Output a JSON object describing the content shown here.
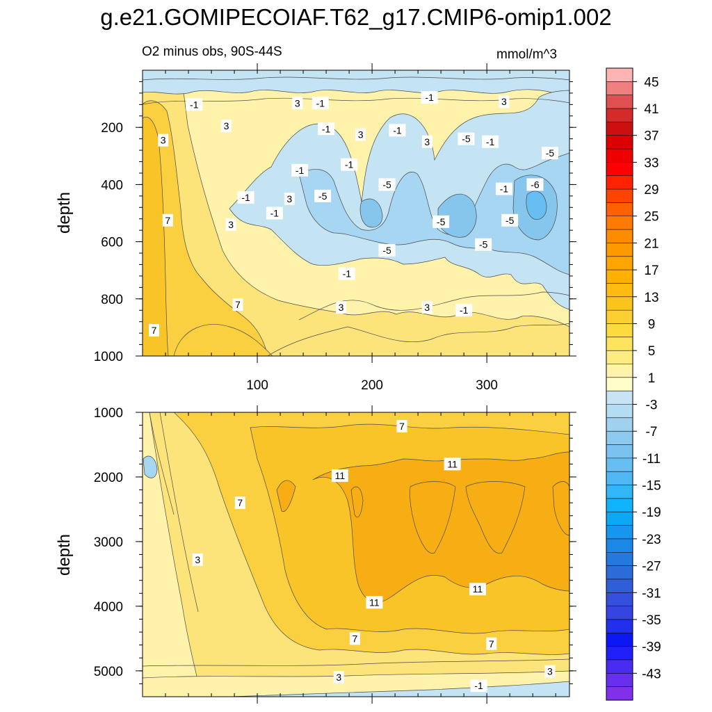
{
  "chart_data": {
    "type": "contour",
    "title": "g.e21.GOMIPECOIAF.T62_g17.CMIP6-omip1.002",
    "subtitle": "O2 minus obs, 90S-44S",
    "units": "mmol/m^3",
    "panels": [
      {
        "name": "upper",
        "ylabel": "depth",
        "ylim": [
          1000,
          0
        ],
        "xlim": [
          0,
          372
        ],
        "xticks": [
          100,
          200,
          300
        ],
        "xtick_labels": [
          "100",
          "200",
          "300"
        ],
        "yticks": [
          200,
          400,
          600,
          800,
          1000
        ],
        "ytick_labels": [
          "200",
          "400",
          "600",
          "800",
          "1000"
        ],
        "contour_labels": [
          {
            "text": "-1",
            "x": 45,
            "y": 120
          },
          {
            "text": "3",
            "x": 135,
            "y": 115
          },
          {
            "text": "-1",
            "x": 155,
            "y": 115
          },
          {
            "text": "-1",
            "x": 250,
            "y": 95
          },
          {
            "text": "3",
            "x": 315,
            "y": 110
          },
          {
            "text": "3",
            "x": 73,
            "y": 195
          },
          {
            "text": "3",
            "x": 18,
            "y": 245
          },
          {
            "text": "-1",
            "x": 160,
            "y": 205
          },
          {
            "text": "3",
            "x": 190,
            "y": 225
          },
          {
            "text": "-1",
            "x": 222,
            "y": 210
          },
          {
            "text": "3",
            "x": 248,
            "y": 250
          },
          {
            "text": "-5",
            "x": 282,
            "y": 240
          },
          {
            "text": "-1",
            "x": 303,
            "y": 250
          },
          {
            "text": "-5",
            "x": 355,
            "y": 290
          },
          {
            "text": "-1",
            "x": 137,
            "y": 350
          },
          {
            "text": "-1",
            "x": 180,
            "y": 330
          },
          {
            "text": "-5",
            "x": 213,
            "y": 400
          },
          {
            "text": "-1",
            "x": 315,
            "y": 415
          },
          {
            "text": "-6",
            "x": 342,
            "y": 400
          },
          {
            "text": "-1",
            "x": 90,
            "y": 445
          },
          {
            "text": "3",
            "x": 128,
            "y": 450
          },
          {
            "text": "-5",
            "x": 157,
            "y": 440
          },
          {
            "text": "-1",
            "x": 115,
            "y": 500
          },
          {
            "text": "7",
            "x": 22,
            "y": 525
          },
          {
            "text": "3",
            "x": 77,
            "y": 540
          },
          {
            "text": "-5",
            "x": 260,
            "y": 530
          },
          {
            "text": "-5",
            "x": 320,
            "y": 525
          },
          {
            "text": "-5",
            "x": 213,
            "y": 630
          },
          {
            "text": "-5",
            "x": 297,
            "y": 610
          },
          {
            "text": "-1",
            "x": 178,
            "y": 712
          },
          {
            "text": "-1",
            "x": 280,
            "y": 840
          },
          {
            "text": "7",
            "x": 83,
            "y": 820
          },
          {
            "text": "3",
            "x": 173,
            "y": 830
          },
          {
            "text": "3",
            "x": 248,
            "y": 830
          },
          {
            "text": "7",
            "x": 10,
            "y": 910
          }
        ]
      },
      {
        "name": "lower",
        "ylabel": "depth",
        "ylim": [
          5400,
          1000
        ],
        "xlim": [
          0,
          372
        ],
        "xticks": [
          100,
          200,
          300
        ],
        "xtick_labels": [
          "",
          "",
          ""
        ],
        "yticks": [
          1000,
          2000,
          3000,
          4000,
          5000
        ],
        "ytick_labels": [
          "1000",
          "2000",
          "3000",
          "4000",
          "5000"
        ],
        "contour_labels": [
          {
            "text": "7",
            "x": 226,
            "y": 1215
          },
          {
            "text": "11",
            "x": 270,
            "y": 1800
          },
          {
            "text": "11",
            "x": 172,
            "y": 1980
          },
          {
            "text": "7",
            "x": 85,
            "y": 2400
          },
          {
            "text": "3",
            "x": 48,
            "y": 3280
          },
          {
            "text": "11",
            "x": 292,
            "y": 3735
          },
          {
            "text": "11",
            "x": 202,
            "y": 3940
          },
          {
            "text": "7",
            "x": 185,
            "y": 4500
          },
          {
            "text": "7",
            "x": 304,
            "y": 4580
          },
          {
            "text": "3",
            "x": 171,
            "y": 5100
          },
          {
            "text": "3",
            "x": 355,
            "y": 5010
          },
          {
            "text": "-1",
            "x": 293,
            "y": 5230
          }
        ]
      }
    ],
    "colorbar": {
      "labels": [
        "45",
        "41",
        "37",
        "33",
        "29",
        "25",
        "21",
        "17",
        "13",
        "9",
        "5",
        "1",
        "-3",
        "-7",
        "-11",
        "-15",
        "-19",
        "-23",
        "-27",
        "-31",
        "-35",
        "-39",
        "-43"
      ],
      "colors": [
        "#ffb4b4",
        "#f08080",
        "#e05050",
        "#d42a2a",
        "#cc1010",
        "#dd0000",
        "#ee0000",
        "#ff0000",
        "#ff2200",
        "#ff4400",
        "#ff6000",
        "#ff7a00",
        "#ff8c00",
        "#ff9900",
        "#ffa500",
        "#ffb000",
        "#ffbc10",
        "#f9c41c",
        "#fbd030",
        "#fdda40",
        "#fde45e",
        "#fdec84",
        "#fff3ac",
        "#ffffcc",
        "#c8e4f4",
        "#b4dcf2",
        "#a0d2f0",
        "#8ecaf0",
        "#7cc2f0",
        "#66bef2",
        "#4fb8f4",
        "#32b6f8",
        "#10b4fc",
        "#0ca8f8",
        "#1696ee",
        "#1c88e6",
        "#2478de",
        "#2c6cd8",
        "#305ed8",
        "#3450dc",
        "#3644e0",
        "#2030ec",
        "#0c18f4",
        "#2020f8",
        "#4a2cf0",
        "#6630ee",
        "#8030ea"
      ]
    },
    "fill_colors": {
      "deep_blue": "#86c6ec",
      "mid_blue": "#a6d6f2",
      "light_blue": "#c4e4f4",
      "pale_yellow": "#fff3ac",
      "light_yellow": "#fde47a",
      "yellow": "#fbd040",
      "gold": "#f9c428",
      "orange": "#f7ae14"
    }
  }
}
